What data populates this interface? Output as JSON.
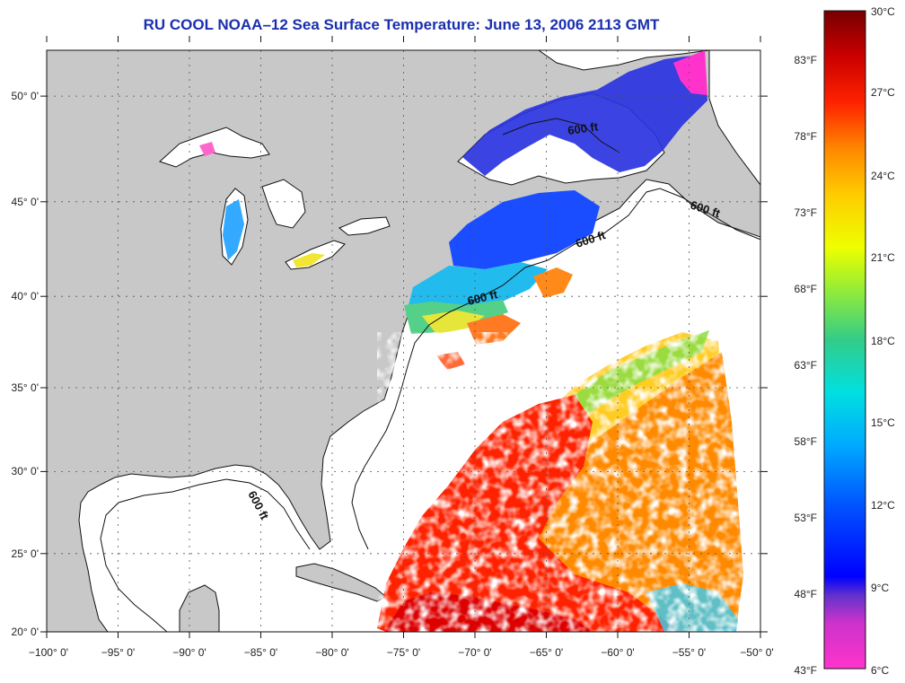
{
  "title": "RU COOL  NOAA–12  Sea Surface Temperature:  June 13, 2006 2113 GMT",
  "map": {
    "lon_range": [
      -100,
      -50
    ],
    "lat_range": [
      20,
      52.5
    ],
    "lon_ticks": [
      "−100° 0'",
      "−95° 0'",
      "−90° 0'",
      "−85° 0'",
      "−80° 0'",
      "−75° 0'",
      "−70° 0'",
      "−65° 0'",
      "−60° 0'",
      "−55° 0'",
      "−50° 0'"
    ],
    "lat_ticks": [
      "20° 0'",
      "25° 0'",
      "30° 0'",
      "35° 0'",
      "40° 0'",
      "45° 0'",
      "50° 0'"
    ],
    "grid": true,
    "land_color": "#c8c8c8",
    "ocean_color": "#ffffff",
    "contour_labels": [
      "600 ft",
      "600 ft",
      "600 ft",
      "600 ft",
      "600 ft"
    ]
  },
  "colorbar": {
    "celsius": [
      "30°C",
      "27°C",
      "24°C",
      "21°C",
      "18°C",
      "15°C",
      "12°C",
      "9°C",
      "6°C"
    ],
    "fahrenheit": [
      "83°F",
      "78°F",
      "73°F",
      "68°F",
      "63°F",
      "58°F",
      "53°F",
      "48°F",
      "43°F"
    ],
    "colors": [
      "#ff33cc",
      "#6633cc",
      "#0000ff",
      "#0099ff",
      "#00e6e6",
      "#33cc66",
      "#ccff00",
      "#ffcc00",
      "#ff7700",
      "#ff1a00",
      "#cc0000",
      "#7a0000"
    ]
  }
}
